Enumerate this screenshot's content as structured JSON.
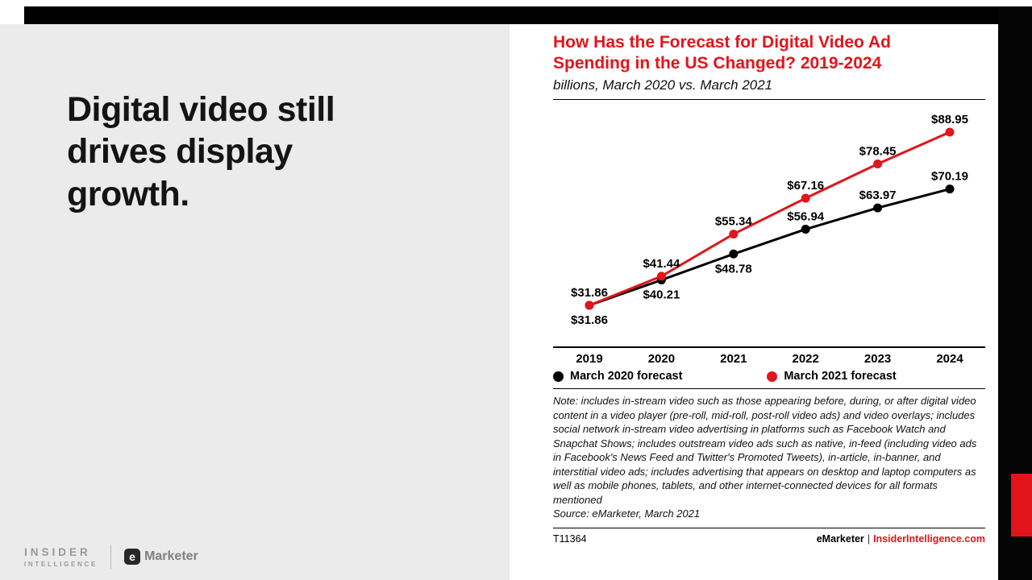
{
  "colors": {
    "accent_red": "#e1151b",
    "left_panel_bg": "#ebebeb",
    "ink": "#000000"
  },
  "left_panel": {
    "headline": "Digital video still drives display growth.",
    "brand": {
      "insider": "INSIDER",
      "intelligence": "INTELLIGENCE",
      "emarketer_e": "e",
      "emarketer_text": "Marketer"
    }
  },
  "chart_panel": {
    "title_lines": [
      "How Has the Forecast for Digital Video Ad",
      "Spending in the US Changed? 2019-2024"
    ],
    "subtitle": "billions, March 2020 vs. March 2021",
    "note": "Note: includes in-stream video such as those appearing before, during, or after digital video content in a video player (pre-roll, mid-roll, post-roll video ads) and video overlays; includes social network in-stream video advertising in platforms such as Facebook Watch and Snapchat Shows; includes outstream video ads such as native, in-feed (including video ads in Facebook's News Feed and Twitter's Promoted Tweets), in-article, in-banner, and interstitial video ads; includes advertising that appears on desktop and laptop computers as well as mobile phones, tablets, and other internet-connected devices for all formats mentioned",
    "source": "Source: eMarketer, March 2021",
    "footer_id": "T11364",
    "footer_brand": "eMarketer",
    "footer_sep": "|",
    "footer_site": "InsiderIntelligence.com"
  },
  "chart_data": {
    "type": "line",
    "title": "How Has the Forecast for Digital Video Ad Spending in the US Changed? 2019-2024",
    "subtitle": "billions, March 2020 vs. March 2021",
    "categories": [
      "2019",
      "2020",
      "2021",
      "2022",
      "2023",
      "2024"
    ],
    "series": [
      {
        "name": "March 2020 forecast",
        "color": "#000000",
        "values": [
          31.86,
          40.21,
          48.78,
          56.94,
          63.97,
          70.19
        ],
        "label_sides": [
          "below",
          "below",
          "below",
          "above",
          "above",
          "above"
        ]
      },
      {
        "name": "March 2021 forecast",
        "color": "#e1151b",
        "values": [
          31.86,
          41.44,
          55.34,
          67.16,
          78.45,
          88.95
        ],
        "label_sides": [
          "above",
          "above",
          "above",
          "above",
          "above",
          "above"
        ]
      }
    ],
    "value_prefix": "$",
    "unit": "billions USD",
    "y_range": [
      31.86,
      88.95
    ],
    "grid": false,
    "legend_position": "bottom"
  }
}
